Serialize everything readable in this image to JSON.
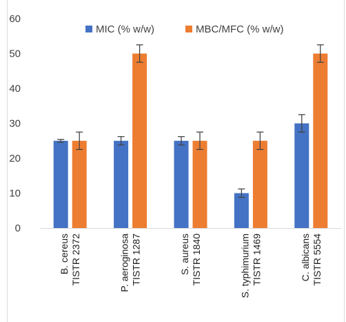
{
  "chart_data": {
    "type": "bar",
    "title": "",
    "xlabel": "",
    "ylabel": "",
    "ylim": [
      0,
      60
    ],
    "yticks": [
      0,
      10,
      20,
      30,
      40,
      50,
      60
    ],
    "grid": false,
    "legend_position": "top",
    "categories": [
      [
        "B. cereus",
        "TISTR 2372"
      ],
      [
        "P. aeroginosa",
        "TISTR 1287"
      ],
      [
        "S. aureus",
        "TISTR 1840"
      ],
      [
        "S. typhimurium",
        "TISTR 1469"
      ],
      [
        "C. albicans",
        "TISTR 5554"
      ]
    ],
    "series": [
      {
        "name": "MIC (% w/w)",
        "color": "#4472c4",
        "values": [
          25,
          25,
          25,
          10,
          30
        ],
        "error": [
          0.4,
          1.2,
          1.2,
          1.2,
          2.5
        ]
      },
      {
        "name": "MBC/MFC (% w/w)",
        "color": "#ed7d31",
        "values": [
          25,
          50,
          25,
          25,
          50
        ],
        "error": [
          2.5,
          2.5,
          2.5,
          2.5,
          2.5
        ]
      }
    ]
  }
}
